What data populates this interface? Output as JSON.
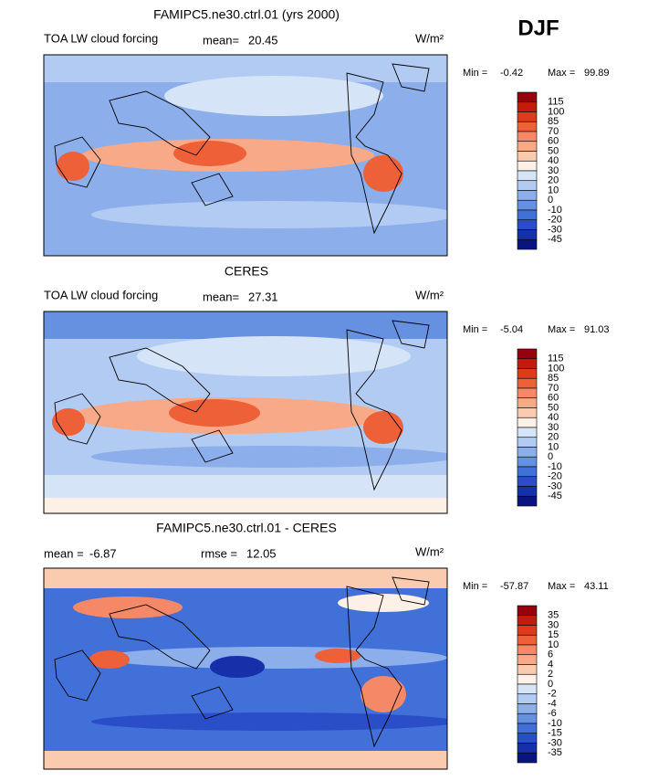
{
  "title": "DJF",
  "panels": [
    {
      "title": "FAMIPC5.ne30.ctrl.01 (yrs 2000)",
      "variable": "TOA LW cloud forcing",
      "stats": [
        {
          "label": "mean=",
          "value": 20.45
        }
      ],
      "units": "W/m²",
      "min_label": "Min =",
      "min": -0.42,
      "max_label": "Max =",
      "max": 99.89,
      "levels": [
        115,
        100,
        85,
        70,
        60,
        50,
        40,
        30,
        20,
        10,
        0,
        -10,
        -20,
        -30,
        -45
      ],
      "colors": [
        "#99000d",
        "#c41c0c",
        "#de3a1c",
        "#ee6038",
        "#f58866",
        "#f8aa88",
        "#fbcbb0",
        "#fdf0e6",
        "#d6e4f8",
        "#b2cbf2",
        "#8caeea",
        "#6690e0",
        "#4070d8",
        "#2a4ec8",
        "#1630aa",
        "#0a1480"
      ]
    },
    {
      "title": "CERES",
      "variable": "TOA LW cloud forcing",
      "stats": [
        {
          "label": "mean=",
          "value": 27.31
        }
      ],
      "units": "W/m²",
      "min_label": "Min =",
      "min": -5.04,
      "max_label": "Max =",
      "max": 91.03,
      "levels": [
        115,
        100,
        85,
        70,
        60,
        50,
        40,
        30,
        20,
        10,
        0,
        -10,
        -20,
        -30,
        -45
      ],
      "colors": [
        "#99000d",
        "#c41c0c",
        "#de3a1c",
        "#ee6038",
        "#f58866",
        "#f8aa88",
        "#fbcbb0",
        "#fdf0e6",
        "#d6e4f8",
        "#b2cbf2",
        "#8caeea",
        "#6690e0",
        "#4070d8",
        "#2a4ec8",
        "#1630aa",
        "#0a1480"
      ]
    },
    {
      "title": "FAMIPC5.ne30.ctrl.01 - CERES",
      "stats": [
        {
          "label": "mean =",
          "value": -6.87
        },
        {
          "label": "rmse =",
          "value": 12.05
        }
      ],
      "units": "W/m²",
      "min_label": "Min =",
      "min": -57.87,
      "max_label": "Max =",
      "max": 43.11,
      "levels": [
        35,
        30,
        15,
        10,
        6,
        4,
        2,
        0,
        -2,
        -4,
        -6,
        -10,
        -15,
        -30,
        -35
      ],
      "colors": [
        "#99000d",
        "#c41c0c",
        "#de3a1c",
        "#ee6038",
        "#f58866",
        "#f8aa88",
        "#fbcbb0",
        "#fdf0e6",
        "#d6e4f8",
        "#b2cbf2",
        "#8caeea",
        "#6690e0",
        "#4070d8",
        "#2a4ec8",
        "#1630aa",
        "#0a1480"
      ]
    }
  ]
}
